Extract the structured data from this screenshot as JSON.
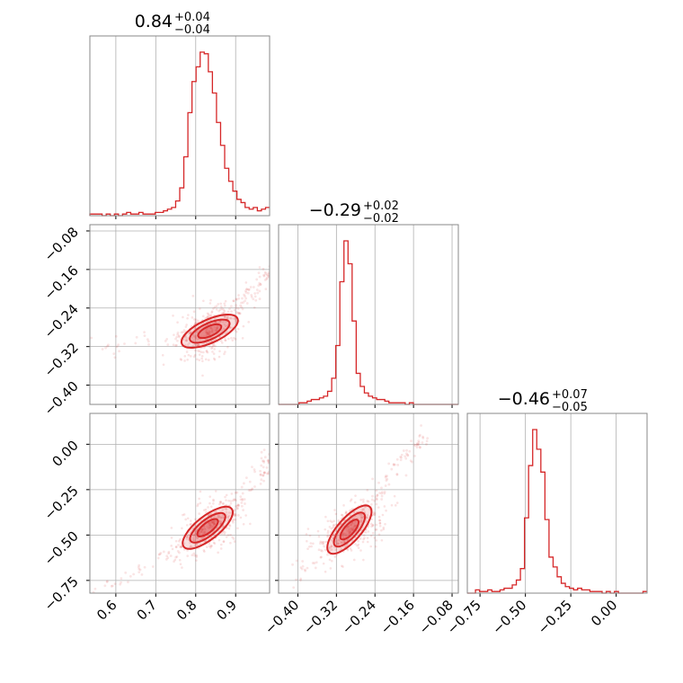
{
  "chart_data": {
    "type": "corner",
    "color": "#d62728",
    "parameters": [
      {
        "range": [
          0.535,
          0.985
        ],
        "median_text": "0.84",
        "upper_text": "+0.04",
        "lower_text": "−0.04",
        "ticks": [
          0.6,
          0.7,
          0.8,
          0.9
        ],
        "tick_labels": [
          "0.6",
          "0.7",
          "0.8",
          "0.9"
        ]
      },
      {
        "range": [
          -0.44,
          -0.067
        ],
        "median_text": "−0.29",
        "upper_text": "+0.02",
        "lower_text": "−0.02",
        "ticks": [
          -0.4,
          -0.32,
          -0.24,
          -0.16,
          -0.08
        ],
        "tick_labels": [
          "−0.40",
          "−0.32",
          "−0.24",
          "−0.16",
          "−0.08"
        ]
      },
      {
        "range": [
          -0.82,
          0.17
        ],
        "median_text": "−0.46",
        "upper_text": "+0.07",
        "lower_text": "−0.05",
        "ticks": [
          -0.75,
          -0.5,
          -0.25,
          0.0
        ],
        "tick_labels": [
          "−0.75",
          "−0.50",
          "−0.25",
          "0.00"
        ]
      }
    ],
    "histograms": [
      {
        "param": 0,
        "bins": [
          0.535,
          0.985
        ],
        "counts": [
          1,
          1,
          1,
          0,
          1,
          0,
          1,
          0,
          1,
          2,
          1,
          1,
          2,
          1,
          1,
          1,
          2,
          2,
          3,
          4,
          5,
          9,
          17,
          36,
          63,
          82,
          91,
          100,
          99,
          88,
          75,
          57,
          43,
          29,
          21,
          15,
          10,
          8,
          5,
          4,
          5,
          3,
          4,
          5
        ]
      },
      {
        "param": 1,
        "bins": [
          -0.44,
          -0.067
        ],
        "counts": [
          0,
          0,
          0,
          0,
          0,
          1,
          1,
          2,
          3,
          3,
          4,
          5,
          8,
          16,
          36,
          75,
          100,
          86,
          51,
          19,
          11,
          7,
          5,
          4,
          3,
          3,
          2,
          1,
          1,
          1,
          1,
          0,
          1,
          0,
          0,
          0,
          0,
          0,
          0,
          0,
          0,
          0,
          0,
          0
        ]
      },
      {
        "param": 2,
        "bins": [
          -0.82,
          0.17
        ],
        "counts": [
          0,
          0,
          2,
          1,
          1,
          2,
          1,
          1,
          2,
          3,
          3,
          5,
          8,
          15,
          46,
          78,
          100,
          88,
          74,
          45,
          22,
          16,
          10,
          6,
          4,
          3,
          2,
          3,
          2,
          2,
          1,
          1,
          1,
          0,
          1,
          0,
          1,
          0,
          0,
          0,
          0,
          0,
          0,
          1
        ]
      }
    ],
    "scatter_panels": [
      {
        "x_param": 0,
        "y_param": 1,
        "trend": [
          [
            0.55,
            -0.325
          ],
          [
            0.75,
            -0.305
          ],
          [
            0.8,
            -0.29
          ],
          [
            0.85,
            -0.27
          ],
          [
            0.9,
            -0.24
          ],
          [
            0.95,
            -0.2
          ],
          [
            0.985,
            -0.16
          ]
        ],
        "density_center": [
          0.835,
          -0.288
        ]
      },
      {
        "x_param": 0,
        "y_param": 2,
        "trend": [
          [
            0.56,
            -0.79
          ],
          [
            0.7,
            -0.66
          ],
          [
            0.78,
            -0.54
          ],
          [
            0.83,
            -0.47
          ],
          [
            0.88,
            -0.39
          ],
          [
            0.92,
            -0.3
          ],
          [
            0.96,
            -0.18
          ],
          [
            0.985,
            -0.05
          ]
        ],
        "density_center": [
          0.83,
          -0.46
        ]
      },
      {
        "x_param": 1,
        "y_param": 2,
        "trend": [
          [
            -0.4,
            -0.75
          ],
          [
            -0.34,
            -0.58
          ],
          [
            -0.3,
            -0.49
          ],
          [
            -0.27,
            -0.4
          ],
          [
            -0.24,
            -0.29
          ],
          [
            -0.19,
            -0.1
          ],
          [
            -0.13,
            0.06
          ]
        ],
        "density_center": [
          -0.293,
          -0.47
        ]
      }
    ],
    "grid": true
  }
}
